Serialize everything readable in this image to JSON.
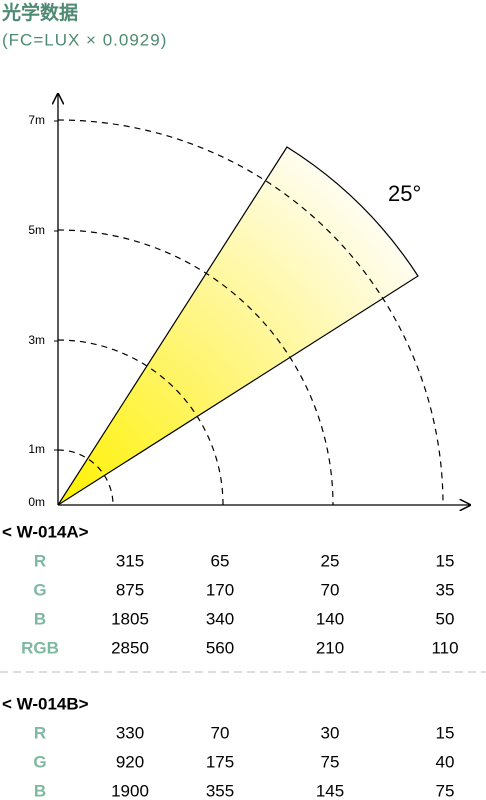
{
  "header": {
    "title": "光学数据",
    "subtitle": "(FC=LUX × 0.0929)"
  },
  "diagram": {
    "distance_labels": [
      "7m",
      "5m",
      "3m",
      "1m",
      "0m"
    ],
    "beam_angle": "25°"
  },
  "tables": [
    {
      "name": "< W-014A>",
      "rows": [
        [
          "R",
          315,
          65,
          25,
          15
        ],
        [
          "G",
          875,
          170,
          70,
          35
        ],
        [
          "B",
          1805,
          340,
          140,
          50
        ],
        [
          "RGB",
          2850,
          560,
          210,
          110
        ]
      ]
    },
    {
      "name": "< W-014B>",
      "rows": [
        [
          "R",
          330,
          70,
          30,
          15
        ],
        [
          "G",
          920,
          175,
          75,
          40
        ],
        [
          "B",
          1900,
          355,
          145,
          75
        ]
      ]
    }
  ]
}
